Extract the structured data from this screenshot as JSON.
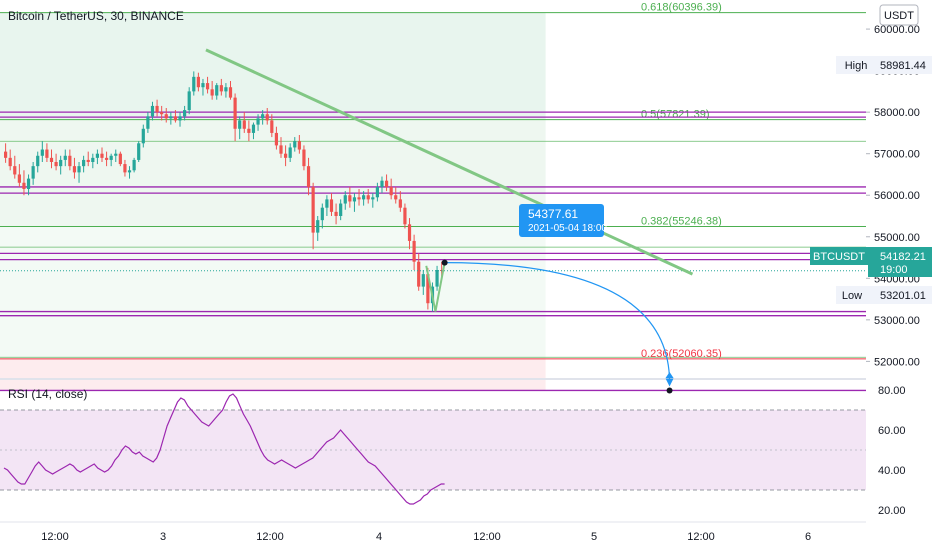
{
  "header": {
    "title": "Bitcoin / TetherUS, 30, BINANCE",
    "currency": "USDT"
  },
  "price_tags": {
    "high_label": "High",
    "high_value": "58981.44",
    "low_label": "Low",
    "low_value": "53201.01",
    "symbol": "BTCUSDT",
    "last_value": "54182.21",
    "countdown": "19:00"
  },
  "callout": {
    "price": "54377.61",
    "datetime": "2021-05-04 18:00"
  },
  "fib_levels": [
    {
      "label": "0.618(60396.39)",
      "price": 60396.39,
      "color": "#4caf50"
    },
    {
      "label": "0.5(57821.39)",
      "price": 57821.39,
      "color": "#4caf50"
    },
    {
      "label": "0.382(55246.38)",
      "price": 55246.38,
      "color": "#4caf50"
    },
    {
      "label": "0.236(52060.35)",
      "price": 52060.35,
      "color": "#f23645"
    }
  ],
  "indicator": {
    "title": "RSI (14, close)",
    "ticks": [
      "80.00",
      "60.00",
      "40.00",
      "20.00"
    ]
  },
  "colors": {
    "up": "#26a69a",
    "down": "#ef5350",
    "trendline": "#81c784",
    "level": "#9c27b0",
    "rsi": "#9c27b0",
    "forecast": "#2196f3",
    "last_tag": "#26a69a"
  },
  "chart_data": [
    {
      "type": "candlestick",
      "title": "Bitcoin / TetherUS, 30, BINANCE",
      "x_ticks": [
        "12:00",
        "3",
        "12:00",
        "4",
        "12:00",
        "5",
        "12:00",
        "6"
      ],
      "y_ticks": [
        "60000.00",
        "59000.00",
        "58000.00",
        "57000.00",
        "56000.00",
        "55000.00",
        "54000.00",
        "53000.00",
        "52000.00"
      ],
      "ylim": [
        51600,
        60700
      ],
      "high": 58981.44,
      "low": 53201.01,
      "last": 54182.21,
      "horizontal_levels": [
        58000,
        57880,
        56200,
        56050,
        54600,
        54450,
        53200,
        53100,
        51300
      ],
      "candles": [
        {
          "o": 57050,
          "h": 57250,
          "l": 56780,
          "c": 56900
        },
        {
          "o": 56900,
          "h": 57100,
          "l": 56600,
          "c": 56700
        },
        {
          "o": 56700,
          "h": 56950,
          "l": 56400,
          "c": 56500
        },
        {
          "o": 56500,
          "h": 56750,
          "l": 56200,
          "c": 56300
        },
        {
          "o": 56300,
          "h": 56600,
          "l": 56000,
          "c": 56150
        },
        {
          "o": 56150,
          "h": 56500,
          "l": 56000,
          "c": 56400
        },
        {
          "o": 56400,
          "h": 56800,
          "l": 56250,
          "c": 56700
        },
        {
          "o": 56700,
          "h": 57050,
          "l": 56550,
          "c": 56950
        },
        {
          "o": 56950,
          "h": 57300,
          "l": 56800,
          "c": 57100
        },
        {
          "o": 57100,
          "h": 57250,
          "l": 56800,
          "c": 56900
        },
        {
          "o": 56900,
          "h": 57100,
          "l": 56650,
          "c": 56800
        },
        {
          "o": 56800,
          "h": 57000,
          "l": 56600,
          "c": 56700
        },
        {
          "o": 56700,
          "h": 56950,
          "l": 56500,
          "c": 56850
        },
        {
          "o": 56850,
          "h": 57100,
          "l": 56700,
          "c": 56950
        },
        {
          "o": 56950,
          "h": 57100,
          "l": 56600,
          "c": 56700
        },
        {
          "o": 56700,
          "h": 56900,
          "l": 56400,
          "c": 56550
        },
        {
          "o": 56550,
          "h": 56800,
          "l": 56300,
          "c": 56700
        },
        {
          "o": 56700,
          "h": 56950,
          "l": 56550,
          "c": 56850
        },
        {
          "o": 56850,
          "h": 57050,
          "l": 56700,
          "c": 56800
        },
        {
          "o": 56800,
          "h": 57000,
          "l": 56650,
          "c": 56900
        },
        {
          "o": 56900,
          "h": 57100,
          "l": 56750,
          "c": 57000
        },
        {
          "o": 57000,
          "h": 57150,
          "l": 56800,
          "c": 56900
        },
        {
          "o": 56900,
          "h": 57050,
          "l": 56700,
          "c": 56850
        },
        {
          "o": 56850,
          "h": 57000,
          "l": 56700,
          "c": 56950
        },
        {
          "o": 56950,
          "h": 57100,
          "l": 56800,
          "c": 57000
        },
        {
          "o": 57000,
          "h": 57050,
          "l": 56700,
          "c": 56750
        },
        {
          "o": 56750,
          "h": 56850,
          "l": 56450,
          "c": 56550
        },
        {
          "o": 56550,
          "h": 56700,
          "l": 56400,
          "c": 56600
        },
        {
          "o": 56600,
          "h": 56900,
          "l": 56550,
          "c": 56850
        },
        {
          "o": 56850,
          "h": 57300,
          "l": 56800,
          "c": 57250
        },
        {
          "o": 57250,
          "h": 57700,
          "l": 57150,
          "c": 57600
        },
        {
          "o": 57600,
          "h": 58000,
          "l": 57500,
          "c": 57900
        },
        {
          "o": 57900,
          "h": 58250,
          "l": 57800,
          "c": 58150
        },
        {
          "o": 58150,
          "h": 58300,
          "l": 57900,
          "c": 58000
        },
        {
          "o": 58000,
          "h": 58150,
          "l": 57800,
          "c": 57950
        },
        {
          "o": 57950,
          "h": 58100,
          "l": 57750,
          "c": 57850
        },
        {
          "o": 57850,
          "h": 58000,
          "l": 57700,
          "c": 57900
        },
        {
          "o": 57900,
          "h": 58050,
          "l": 57750,
          "c": 57800
        },
        {
          "o": 57800,
          "h": 58000,
          "l": 57650,
          "c": 57900
        },
        {
          "o": 57900,
          "h": 58150,
          "l": 57800,
          "c": 58050
        },
        {
          "o": 58050,
          "h": 58600,
          "l": 57950,
          "c": 58500
        },
        {
          "o": 58500,
          "h": 58981,
          "l": 58400,
          "c": 58850
        },
        {
          "o": 58850,
          "h": 58950,
          "l": 58500,
          "c": 58600
        },
        {
          "o": 58600,
          "h": 58800,
          "l": 58400,
          "c": 58700
        },
        {
          "o": 58700,
          "h": 58850,
          "l": 58450,
          "c": 58550
        },
        {
          "o": 58550,
          "h": 58750,
          "l": 58300,
          "c": 58400
        },
        {
          "o": 58400,
          "h": 58700,
          "l": 58300,
          "c": 58650
        },
        {
          "o": 58650,
          "h": 58800,
          "l": 58400,
          "c": 58500
        },
        {
          "o": 58500,
          "h": 58700,
          "l": 58350,
          "c": 58600
        },
        {
          "o": 58600,
          "h": 58750,
          "l": 58300,
          "c": 58350
        },
        {
          "o": 58350,
          "h": 58450,
          "l": 57300,
          "c": 57600
        },
        {
          "o": 57600,
          "h": 57900,
          "l": 57350,
          "c": 57800
        },
        {
          "o": 57800,
          "h": 58000,
          "l": 57500,
          "c": 57600
        },
        {
          "o": 57600,
          "h": 57800,
          "l": 57300,
          "c": 57500
        },
        {
          "o": 57500,
          "h": 57750,
          "l": 57350,
          "c": 57700
        },
        {
          "o": 57700,
          "h": 57950,
          "l": 57550,
          "c": 57850
        },
        {
          "o": 57850,
          "h": 58050,
          "l": 57700,
          "c": 57950
        },
        {
          "o": 57950,
          "h": 58100,
          "l": 57700,
          "c": 57800
        },
        {
          "o": 57800,
          "h": 57950,
          "l": 57400,
          "c": 57500
        },
        {
          "o": 57500,
          "h": 57650,
          "l": 57100,
          "c": 57200
        },
        {
          "o": 57200,
          "h": 57400,
          "l": 56900,
          "c": 57000
        },
        {
          "o": 57000,
          "h": 57200,
          "l": 56700,
          "c": 56900
        },
        {
          "o": 56900,
          "h": 57250,
          "l": 56800,
          "c": 57150
        },
        {
          "o": 57150,
          "h": 57400,
          "l": 57050,
          "c": 57300
        },
        {
          "o": 57300,
          "h": 57450,
          "l": 57000,
          "c": 57100
        },
        {
          "o": 57100,
          "h": 57200,
          "l": 56600,
          "c": 56700
        },
        {
          "o": 56700,
          "h": 56900,
          "l": 56000,
          "c": 56200
        },
        {
          "o": 56200,
          "h": 56300,
          "l": 54700,
          "c": 55100
        },
        {
          "o": 55100,
          "h": 55500,
          "l": 54900,
          "c": 55400
        },
        {
          "o": 55400,
          "h": 55800,
          "l": 55200,
          "c": 55700
        },
        {
          "o": 55700,
          "h": 56000,
          "l": 55500,
          "c": 55900
        },
        {
          "o": 55900,
          "h": 56050,
          "l": 55500,
          "c": 55600
        },
        {
          "o": 55600,
          "h": 55800,
          "l": 55300,
          "c": 55500
        },
        {
          "o": 55500,
          "h": 55900,
          "l": 55400,
          "c": 55800
        },
        {
          "o": 55800,
          "h": 56100,
          "l": 55650,
          "c": 56000
        },
        {
          "o": 56000,
          "h": 56200,
          "l": 55700,
          "c": 55850
        },
        {
          "o": 55850,
          "h": 56050,
          "l": 55600,
          "c": 55950
        },
        {
          "o": 55950,
          "h": 56150,
          "l": 55750,
          "c": 55900
        },
        {
          "o": 55900,
          "h": 56100,
          "l": 55750,
          "c": 56000
        },
        {
          "o": 56000,
          "h": 56150,
          "l": 55800,
          "c": 55900
        },
        {
          "o": 55900,
          "h": 56050,
          "l": 55700,
          "c": 55950
        },
        {
          "o": 55950,
          "h": 56300,
          "l": 55850,
          "c": 56200
        },
        {
          "o": 56200,
          "h": 56450,
          "l": 56050,
          "c": 56350
        },
        {
          "o": 56350,
          "h": 56500,
          "l": 56100,
          "c": 56200
        },
        {
          "o": 56200,
          "h": 56400,
          "l": 55900,
          "c": 56000
        },
        {
          "o": 56000,
          "h": 56200,
          "l": 55800,
          "c": 55900
        },
        {
          "o": 55900,
          "h": 56100,
          "l": 55600,
          "c": 55700
        },
        {
          "o": 55700,
          "h": 55800,
          "l": 55200,
          "c": 55300
        },
        {
          "o": 55300,
          "h": 55450,
          "l": 54700,
          "c": 54900
        },
        {
          "o": 54900,
          "h": 55050,
          "l": 54200,
          "c": 54400
        },
        {
          "o": 54400,
          "h": 54600,
          "l": 53700,
          "c": 53800
        },
        {
          "o": 53800,
          "h": 54200,
          "l": 53600,
          "c": 54100
        },
        {
          "o": 54100,
          "h": 54250,
          "l": 53250,
          "c": 53400
        },
        {
          "o": 53400,
          "h": 53900,
          "l": 53201,
          "c": 53800
        },
        {
          "o": 53800,
          "h": 54300,
          "l": 53700,
          "c": 54200
        },
        {
          "o": 54200,
          "h": 54400,
          "l": 54000,
          "c": 54182
        }
      ],
      "trendline": [
        {
          "bar": 44,
          "price": 59500
        },
        {
          "bar": 150,
          "price": 54100
        }
      ],
      "projection": [
        {
          "bar": 98,
          "price": 54377.61
        },
        {
          "bar": 145,
          "price": 51300
        }
      ],
      "fib_zone_bottom": 51300,
      "fib_zone_end_bar": 118
    },
    {
      "type": "line",
      "title": "RSI (14, close)",
      "ylim": [
        15,
        85
      ],
      "y_ticks": [
        "80.00",
        "60.00",
        "40.00",
        "20.00"
      ],
      "band": [
        30,
        70
      ],
      "values": [
        41,
        40,
        38,
        36,
        34,
        33,
        33,
        36,
        39,
        42,
        44,
        42,
        40,
        39,
        38,
        39,
        40,
        41,
        42,
        43,
        42,
        40,
        39,
        40,
        41,
        42,
        43,
        41,
        40,
        39,
        40,
        42,
        45,
        47,
        50,
        52,
        51,
        49,
        48,
        49,
        47,
        46,
        45,
        44,
        46,
        50,
        56,
        62,
        66,
        70,
        74,
        76,
        75,
        72,
        70,
        68,
        66,
        64,
        63,
        62,
        64,
        66,
        68,
        70,
        74,
        77,
        78,
        76,
        72,
        68,
        65,
        62,
        58,
        54,
        50,
        47,
        45,
        44,
        43,
        44,
        45,
        44,
        43,
        42,
        41,
        42,
        43,
        44,
        45,
        46,
        48,
        50,
        52,
        54,
        55,
        56,
        58,
        60,
        58,
        56,
        54,
        52,
        50,
        48,
        46,
        44,
        43,
        42,
        40,
        38,
        36,
        34,
        32,
        30,
        28,
        26,
        24,
        23,
        23,
        24,
        25,
        27,
        28,
        30,
        31,
        32,
        33,
        33
      ]
    }
  ]
}
